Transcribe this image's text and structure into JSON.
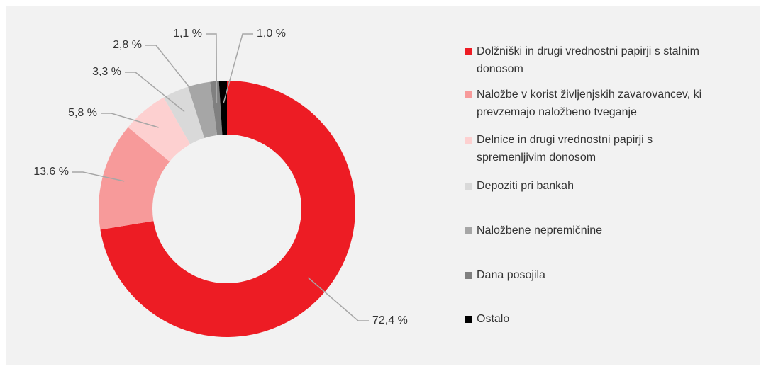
{
  "chart_data": {
    "type": "pie",
    "categories": [
      "Dolžniški in drugi vrednostni papirji s stalnim donosom",
      "Naložbe v korist življenjskih zavarovancev, ki prevzemajo naložbeno tveganje",
      "Delnice in drugi vrednostni papirji s spremenljivim donosom",
      "Depoziti pri bankah",
      "Naložbene nepremičnine",
      "Dana posojila",
      "Ostalo"
    ],
    "values": [
      72.4,
      13.6,
      5.8,
      3.3,
      2.8,
      1.1,
      1.0
    ],
    "value_labels": [
      "72,4 %",
      "13,6 %",
      "5,8 %",
      "3,3 %",
      "2,8 %",
      "1,1 %",
      "1,0 %"
    ],
    "colors": [
      "#ed1c24",
      "#f79a9a",
      "#fdd0d0",
      "#d9d9d9",
      "#a6a6a6",
      "#808080",
      "#000000"
    ],
    "donut": true,
    "legend": "right"
  }
}
